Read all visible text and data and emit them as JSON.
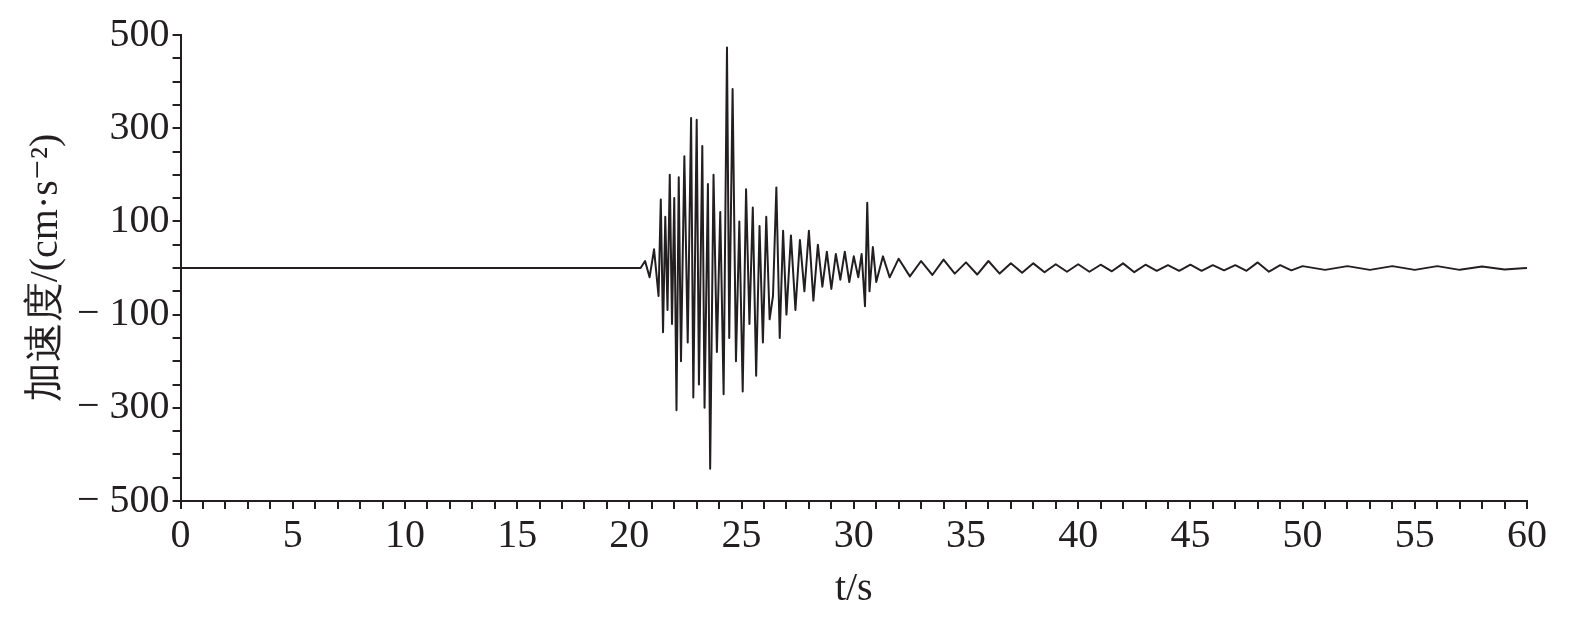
{
  "chart_data": {
    "type": "line",
    "xlabel": "t/s",
    "ylabel": "加速度/(cm·s⁻²)",
    "xlim": [
      0,
      60
    ],
    "ylim": [
      -500,
      500
    ],
    "xticks": [
      0,
      {
        "value": 1,
        "label": null
      },
      {
        "value": 2,
        "label": null
      },
      {
        "value": 3,
        "label": null
      },
      {
        "value": 4,
        "label": null
      },
      5,
      {
        "value": 6,
        "label": null
      },
      {
        "value": 7,
        "label": null
      },
      {
        "value": 8,
        "label": null
      },
      {
        "value": 9,
        "label": null
      },
      10,
      {
        "value": 11,
        "label": null
      },
      {
        "value": 12,
        "label": null
      },
      {
        "value": 13,
        "label": null
      },
      {
        "value": 14,
        "label": null
      },
      15,
      {
        "value": 16,
        "label": null
      },
      {
        "value": 17,
        "label": null
      },
      {
        "value": 18,
        "label": null
      },
      {
        "value": 19,
        "label": null
      },
      20,
      {
        "value": 21,
        "label": null
      },
      {
        "value": 22,
        "label": null
      },
      {
        "value": 23,
        "label": null
      },
      {
        "value": 24,
        "label": null
      },
      25,
      {
        "value": 26,
        "label": null
      },
      {
        "value": 27,
        "label": null
      },
      {
        "value": 28,
        "label": null
      },
      {
        "value": 29,
        "label": null
      },
      30,
      {
        "value": 31,
        "label": null
      },
      {
        "value": 32,
        "label": null
      },
      {
        "value": 33,
        "label": null
      },
      {
        "value": 34,
        "label": null
      },
      35,
      {
        "value": 36,
        "label": null
      },
      {
        "value": 37,
        "label": null
      },
      {
        "value": 38,
        "label": null
      },
      {
        "value": 39,
        "label": null
      },
      40,
      {
        "value": 41,
        "label": null
      },
      {
        "value": 42,
        "label": null
      },
      {
        "value": 43,
        "label": null
      },
      {
        "value": 44,
        "label": null
      },
      45,
      {
        "value": 46,
        "label": null
      },
      {
        "value": 47,
        "label": null
      },
      {
        "value": 48,
        "label": null
      },
      {
        "value": 49,
        "label": null
      },
      50,
      {
        "value": 51,
        "label": null
      },
      {
        "value": 52,
        "label": null
      },
      {
        "value": 53,
        "label": null
      },
      {
        "value": 54,
        "label": null
      },
      55,
      {
        "value": 56,
        "label": null
      },
      {
        "value": 57,
        "label": null
      },
      {
        "value": 58,
        "label": null
      },
      {
        "value": 59,
        "label": null
      },
      60
    ],
    "yticks": [
      {
        "value": -500,
        "label": "− 500"
      },
      {
        "value": -450,
        "label": null
      },
      {
        "value": -400,
        "label": null
      },
      {
        "value": -350,
        "label": null
      },
      {
        "value": -300,
        "label": "− 300"
      },
      {
        "value": -250,
        "label": null
      },
      {
        "value": -200,
        "label": null
      },
      {
        "value": -150,
        "label": null
      },
      {
        "value": -100,
        "label": "− 100"
      },
      {
        "value": -50,
        "label": null
      },
      {
        "value": 0,
        "label": null
      },
      {
        "value": 50,
        "label": null
      },
      100,
      {
        "value": 150,
        "label": null
      },
      {
        "value": 200,
        "label": null
      },
      {
        "value": 250,
        "label": null
      },
      300,
      {
        "value": 350,
        "label": null
      },
      {
        "value": 400,
        "label": null
      },
      {
        "value": 450,
        "label": null
      },
      500
    ],
    "series": [
      {
        "color": "#231f20",
        "x": [
          0,
          20.5,
          20.7,
          20.9,
          21.1,
          21.3,
          21.4,
          21.5,
          21.6,
          21.7,
          21.8,
          21.9,
          22.0,
          22.1,
          22.2,
          22.3,
          22.45,
          22.6,
          22.75,
          22.85,
          23.0,
          23.1,
          23.25,
          23.35,
          23.5,
          23.6,
          23.75,
          23.9,
          24.05,
          24.2,
          24.35,
          24.45,
          24.6,
          24.75,
          24.9,
          25.05,
          25.2,
          25.35,
          25.5,
          25.65,
          25.8,
          25.95,
          26.1,
          26.25,
          26.4,
          26.55,
          26.7,
          26.85,
          27.0,
          27.2,
          27.4,
          27.6,
          27.8,
          28.0,
          28.2,
          28.4,
          28.6,
          28.8,
          29.0,
          29.2,
          29.4,
          29.6,
          29.8,
          30.0,
          30.2,
          30.35,
          30.5,
          30.6,
          30.7,
          30.85,
          31.0,
          31.3,
          31.6,
          32,
          32.5,
          33,
          33.5,
          34,
          34.5,
          35,
          35.5,
          36,
          36.5,
          37,
          37.5,
          38,
          38.5,
          39,
          39.5,
          40,
          40.5,
          41,
          41.5,
          42,
          42.5,
          43,
          43.5,
          44,
          44.5,
          45,
          45.5,
          46,
          46.5,
          47,
          47.5,
          48,
          48.5,
          49,
          49.5,
          50,
          51,
          52,
          53,
          54,
          55,
          56,
          57,
          58,
          59,
          60
        ],
        "values": [
          0,
          0,
          15,
          -20,
          40,
          -60,
          147,
          -138,
          110,
          -90,
          200,
          -120,
          150,
          -305,
          195,
          -200,
          240,
          -160,
          322,
          -278,
          318,
          -250,
          262,
          -300,
          180,
          -431,
          200,
          -180,
          120,
          -271,
          473,
          -150,
          384,
          -200,
          100,
          -265,
          169,
          -120,
          130,
          -231,
          90,
          -160,
          110,
          -110,
          -60,
          173,
          -150,
          80,
          -100,
          70,
          -90,
          60,
          -50,
          80,
          -70,
          50,
          -40,
          35,
          -45,
          30,
          -25,
          35,
          -30,
          25,
          -20,
          30,
          -82,
          140,
          -50,
          45,
          -30,
          25,
          -20,
          20,
          -18,
          15,
          -15,
          18,
          -12,
          12,
          -14,
          15,
          -12,
          10,
          -10,
          10,
          -9,
          8,
          -8,
          8,
          -8,
          7,
          -7,
          10,
          -9,
          7,
          -6,
          6,
          -6,
          7,
          -6,
          6,
          -5,
          6,
          -6,
          12,
          -8,
          6,
          -5,
          4,
          -4,
          4,
          -4,
          4,
          -4,
          4,
          -4,
          3,
          -3,
          0
        ]
      }
    ]
  }
}
